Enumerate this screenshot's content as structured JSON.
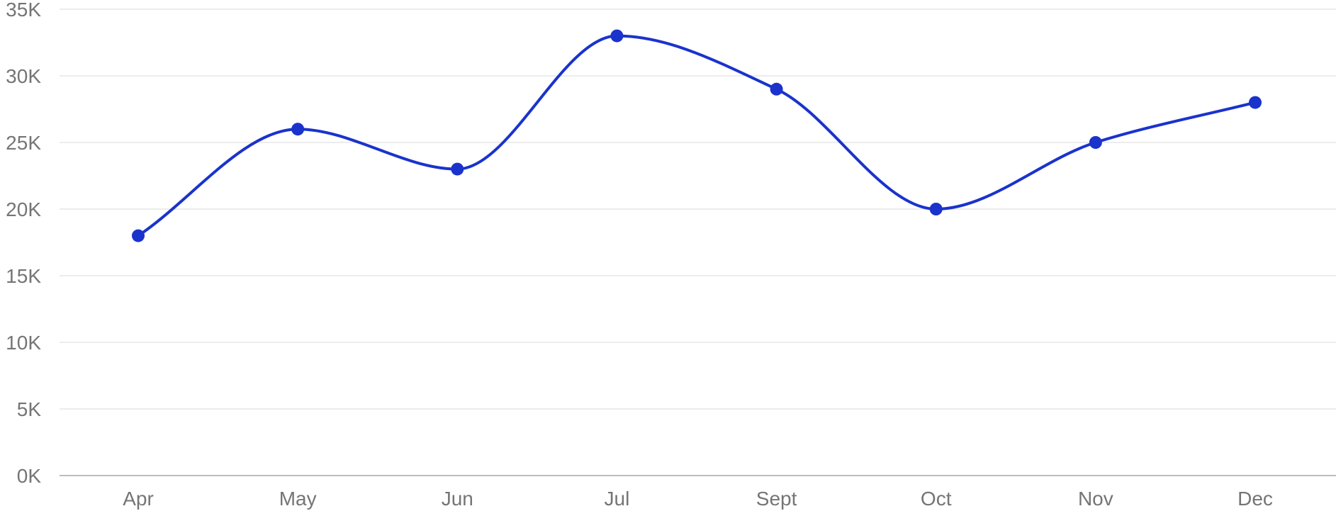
{
  "chart_data": {
    "type": "line",
    "title": "",
    "xlabel": "",
    "ylabel": "",
    "categories": [
      "Apr",
      "May",
      "Jun",
      "Jul",
      "Sept",
      "Oct",
      "Nov",
      "Dec"
    ],
    "series": [
      {
        "values": [
          18000,
          26000,
          23000,
          33000,
          29000,
          20000,
          25000,
          28000
        ],
        "color": "#1a33cc"
      }
    ],
    "ylim": [
      0,
      35000
    ],
    "yticks": [
      0,
      5000,
      10000,
      15000,
      20000,
      25000,
      30000,
      35000
    ],
    "ytick_labels": [
      "0K",
      "5K",
      "10K",
      "15K",
      "20K",
      "25K",
      "30K",
      "35K"
    ],
    "grid": true,
    "smooth": true,
    "markers": true,
    "legend": "none"
  }
}
